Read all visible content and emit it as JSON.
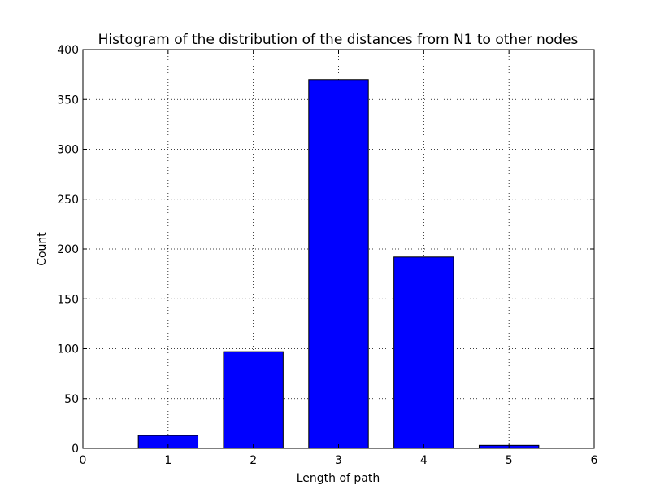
{
  "chart_data": {
    "type": "bar",
    "title": "Histogram of the distribution of the distances from N1 to other nodes",
    "xlabel": "Length of path",
    "ylabel": "Count",
    "xlim": [
      0,
      6
    ],
    "ylim": [
      0,
      400
    ],
    "xticks": [
      "0",
      "1",
      "2",
      "3",
      "4",
      "5",
      "6"
    ],
    "yticks": [
      "0",
      "50",
      "100",
      "150",
      "200",
      "250",
      "300",
      "350",
      "400"
    ],
    "categories": [
      1,
      2,
      3,
      4,
      5,
      6
    ],
    "values": [
      13,
      97,
      370,
      192,
      3,
      0
    ],
    "bar_width": 0.7,
    "bar_color": "#0000ff",
    "grid": true
  }
}
